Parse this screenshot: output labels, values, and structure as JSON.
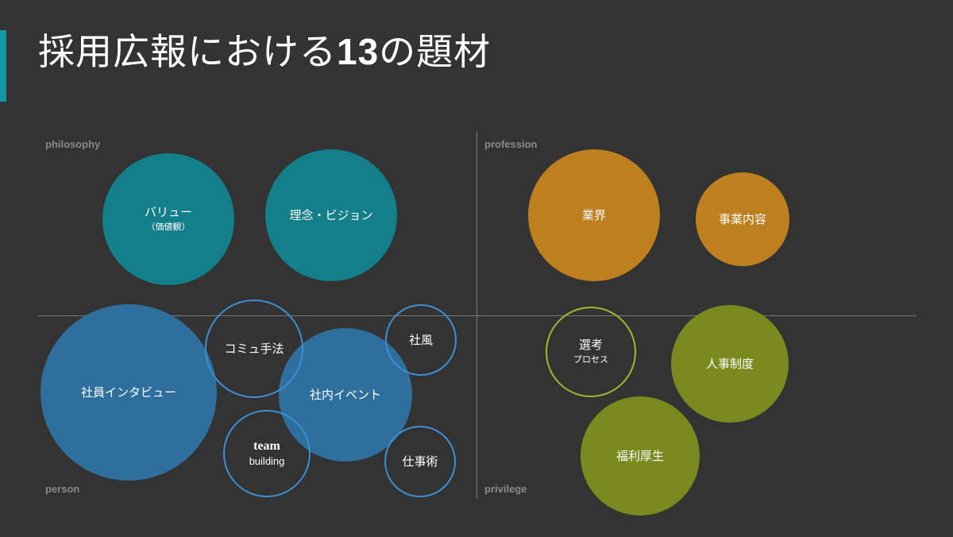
{
  "slide": {
    "title_part1": "採用広報における",
    "title_number": "13",
    "title_part2": "の題材",
    "accent_color": "#1596a6"
  },
  "quadrants": {
    "top_left": "philosophy",
    "top_right": "profession",
    "bottom_left": "person",
    "bottom_right": "privilege"
  },
  "colors": {
    "teal": "#137f8a",
    "orange": "#be7f1f",
    "blue": "#2f6f9e",
    "blue_outline": "#3d8fd4",
    "olive": "#7a8a1e",
    "olive_outline": "#a7b52b"
  },
  "topics": {
    "value": {
      "label": "バリュー",
      "sublabel": "（価値観）"
    },
    "philosophy_vision": {
      "label": "理念・ビジョン"
    },
    "industry": {
      "label": "業界"
    },
    "business": {
      "label": "事業内容"
    },
    "employee_interview": {
      "label": "社員インタビュー"
    },
    "communication": {
      "label": "コミュ手法"
    },
    "culture": {
      "label": "社風"
    },
    "internal_event": {
      "label": "社内イベント"
    },
    "team_building": {
      "label": "team",
      "sublabel": "building"
    },
    "work_skills": {
      "label": "仕事術"
    },
    "selection": {
      "label": "選考",
      "sublabel": "プロセス"
    },
    "hr_system": {
      "label": "人事制度"
    },
    "benefits": {
      "label": "福利厚生"
    }
  }
}
